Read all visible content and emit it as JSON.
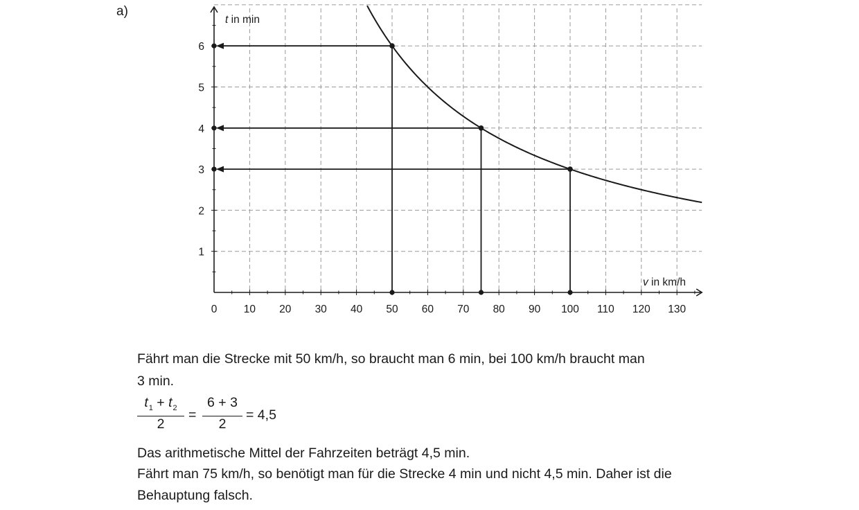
{
  "part_label": "a)",
  "chart_data": {
    "type": "line",
    "xlabel_var": "v",
    "xlabel_unit": " in km/h",
    "ylabel_var": "t",
    "ylabel_unit": " in min",
    "xlim": [
      0,
      137
    ],
    "ylim": [
      0,
      7
    ],
    "x_ticks": [
      0,
      10,
      20,
      30,
      40,
      50,
      60,
      70,
      80,
      90,
      100,
      110,
      120,
      130
    ],
    "y_ticks": [
      1,
      2,
      3,
      4,
      5,
      6
    ],
    "grid": true,
    "curve": {
      "function": "t = 300 / v",
      "x_range": [
        43,
        137
      ]
    },
    "highlighted_points": [
      {
        "x": 50,
        "y": 6
      },
      {
        "x": 75,
        "y": 4
      },
      {
        "x": 100,
        "y": 3
      }
    ]
  },
  "text": {
    "line1": "Fährt man die Strecke mit 50 km/h, so braucht man 6 min, bei 100 km/h braucht man",
    "line2": "3 min.",
    "formula": {
      "t": "t",
      "sub1": "1",
      "sub2": "2",
      "plus": " + ",
      "den_left": "2",
      "eq1": "=",
      "num_right": "6 + 3",
      "den_right": "2",
      "result": "= 4,5"
    },
    "line3": "Das arithmetische Mittel der Fahrzeiten beträgt 4,5 min.",
    "line4": "Fährt man 75 km/h, so benötigt man für die Strecke 4 min und nicht 4,5 min. Daher ist die",
    "line5": "Behauptung falsch."
  }
}
